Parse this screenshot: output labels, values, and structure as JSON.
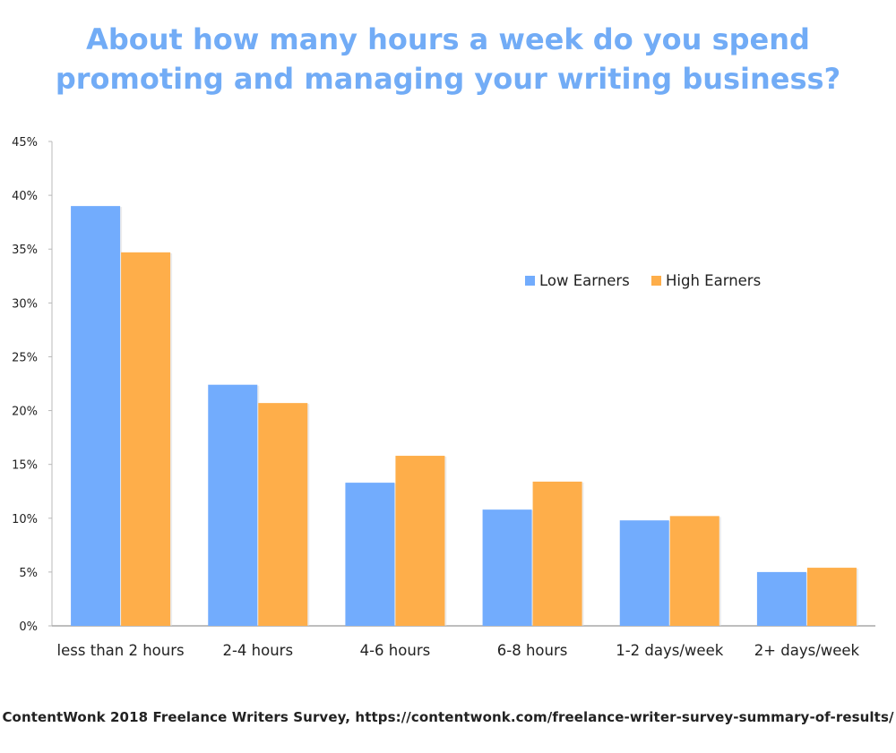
{
  "title_lines": [
    "About how many hours a week do you spend",
    "promoting and managing your writing business?"
  ],
  "footer": "ContentWonk 2018 Freelance Writers Survey, https://contentwonk.com/freelance-writer-survey-summary-of-results/",
  "chart_data": {
    "type": "bar",
    "title": "About how many hours a week do you spend promoting and managing your writing business?",
    "categories": [
      "less than 2 hours",
      "2-4 hours",
      "4-6 hours",
      "6-8 hours",
      "1-2 days/week",
      "2+ days/week"
    ],
    "series": [
      {
        "name": "Low Earners",
        "color": "#72acfd",
        "values": [
          39.0,
          22.4,
          13.3,
          10.8,
          9.8,
          5.0
        ]
      },
      {
        "name": "High Earners",
        "color": "#feae4a",
        "values": [
          34.7,
          20.7,
          15.8,
          13.4,
          10.2,
          5.4
        ]
      }
    ],
    "ylim": [
      0,
      45
    ],
    "yticks": [
      0,
      5,
      10,
      15,
      20,
      25,
      30,
      35,
      40,
      45
    ],
    "ytick_labels": [
      "0%",
      "5%",
      "10%",
      "15%",
      "20%",
      "25%",
      "30%",
      "35%",
      "40%",
      "45%"
    ],
    "xlabel": "",
    "ylabel": "",
    "grid": false,
    "legend_position": "right"
  }
}
